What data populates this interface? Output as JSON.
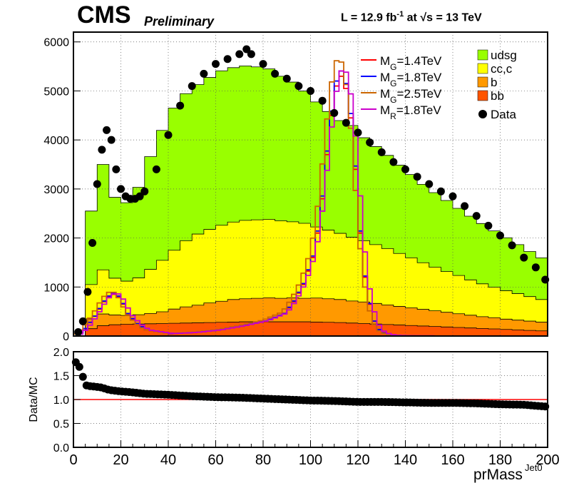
{
  "header": {
    "experiment": "CMS",
    "status": "Preliminary",
    "lumi_label": "L = 12.9 fb",
    "lumi_exponent": "-1",
    "energy_prefix": "at",
    "energy_label": "s = 13 TeV"
  },
  "chart_data": [
    {
      "type": "area",
      "stacked": true,
      "xlim": [
        0,
        200
      ],
      "ylim": [
        0,
        6200
      ],
      "yticks": [
        0,
        1000,
        2000,
        3000,
        4000,
        5000,
        6000
      ],
      "grid": true,
      "legend_position": "top-right",
      "x": [
        0,
        5,
        10,
        15,
        20,
        25,
        30,
        35,
        40,
        45,
        50,
        55,
        60,
        65,
        70,
        75,
        80,
        85,
        90,
        95,
        100,
        105,
        110,
        115,
        120,
        125,
        130,
        135,
        140,
        145,
        150,
        155,
        160,
        165,
        170,
        175,
        180,
        185,
        190,
        195,
        200
      ],
      "series": [
        {
          "name": "bb",
          "color": "#ff5500",
          "values": [
            0,
            150,
            210,
            230,
            240,
            245,
            250,
            255,
            260,
            265,
            270,
            275,
            280,
            285,
            290,
            290,
            290,
            290,
            290,
            290,
            285,
            280,
            275,
            265,
            255,
            245,
            235,
            225,
            215,
            205,
            195,
            185,
            175,
            165,
            155,
            145,
            135,
            125,
            115,
            105,
            95
          ]
        },
        {
          "name": "b",
          "color": "#ff9900",
          "values": [
            0,
            200,
            240,
            200,
            180,
            190,
            210,
            240,
            290,
            330,
            360,
            400,
            430,
            460,
            470,
            480,
            490,
            480,
            490,
            480,
            490,
            480,
            470,
            450,
            440,
            420,
            400,
            380,
            360,
            340,
            320,
            300,
            280,
            260,
            240,
            230,
            210,
            200,
            190,
            180,
            170
          ]
        },
        {
          "name": "cc,c",
          "color": "#ffff00",
          "values": [
            0,
            700,
            900,
            750,
            700,
            750,
            900,
            1050,
            1200,
            1350,
            1450,
            1500,
            1550,
            1580,
            1600,
            1600,
            1600,
            1580,
            1550,
            1530,
            1450,
            1400,
            1350,
            1300,
            1250,
            1200,
            1150,
            1080,
            1020,
            950,
            890,
            830,
            780,
            720,
            670,
            620,
            580,
            540,
            500,
            460,
            430
          ]
        },
        {
          "name": "udsg",
          "color": "#99ff00",
          "values": [
            0,
            1500,
            2150,
            1650,
            1600,
            1850,
            2300,
            2650,
            2900,
            3000,
            3050,
            3100,
            3150,
            3150,
            3150,
            3120,
            3070,
            2950,
            2850,
            2700,
            2550,
            2420,
            2300,
            2280,
            2100,
            2000,
            1900,
            1800,
            1700,
            1600,
            1520,
            1450,
            1370,
            1300,
            1230,
            1150,
            1080,
            1000,
            920,
            850,
            780
          ]
        }
      ],
      "data_points": {
        "name": "Data",
        "color": "#000000",
        "x": [
          2,
          4,
          6,
          8,
          10,
          12,
          14,
          16,
          18,
          20,
          22,
          24,
          26,
          28,
          30,
          35,
          40,
          45,
          50,
          55,
          60,
          65,
          70,
          73,
          75,
          80,
          85,
          90,
          95,
          100,
          105,
          110,
          115,
          120,
          125,
          130,
          135,
          140,
          145,
          150,
          155,
          160,
          165,
          170,
          175,
          180,
          185,
          190,
          195,
          199
        ],
        "values": [
          80,
          300,
          900,
          1900,
          3100,
          3800,
          4200,
          4000,
          3400,
          3000,
          2850,
          2800,
          2800,
          2850,
          2950,
          3400,
          4100,
          4700,
          5100,
          5350,
          5550,
          5650,
          5750,
          5850,
          5750,
          5550,
          5350,
          5250,
          5100,
          5000,
          4800,
          4550,
          4350,
          4150,
          3950,
          3750,
          3550,
          3400,
          3250,
          3100,
          2950,
          2850,
          2650,
          2450,
          2250,
          2050,
          1850,
          1600,
          1400,
          1150
        ]
      },
      "signals": [
        {
          "name": "M_G=1.4TeV",
          "color": "#ff0000"
        },
        {
          "name": "M_G=1.8TeV",
          "color": "#0000ff"
        },
        {
          "name": "M_G=2.5TeV",
          "color": "#cc6600"
        },
        {
          "name": "M_R=1.8TeV",
          "color": "#cc00cc"
        }
      ],
      "signal_shape": {
        "x": [
          0,
          4,
          8,
          12,
          14,
          16,
          18,
          20,
          22,
          26,
          30,
          40,
          50,
          60,
          70,
          80,
          88,
          92,
          96,
          100,
          102,
          104,
          106,
          108,
          110,
          112,
          114,
          116,
          118,
          120,
          122,
          124,
          126,
          128,
          130,
          134,
          140,
          160,
          180,
          200
        ],
        "values": [
          0,
          150,
          400,
          700,
          800,
          850,
          800,
          650,
          450,
          250,
          120,
          50,
          70,
          120,
          200,
          300,
          450,
          700,
          1050,
          1600,
          2100,
          2800,
          3700,
          4500,
          5100,
          5300,
          5050,
          4450,
          3400,
          2100,
          1200,
          650,
          300,
          130,
          60,
          15,
          5,
          0,
          0,
          0
        ]
      },
      "signal_variations": [
        {
          "scale": 1.0,
          "shift": 0
        },
        {
          "scale": 1.02,
          "shift": 0
        },
        {
          "scale": 1.08,
          "shift": -1
        },
        {
          "scale": 1.04,
          "shift": 1
        }
      ]
    },
    {
      "type": "scatter",
      "xlim": [
        0,
        200
      ],
      "ylim": [
        0,
        2
      ],
      "yticks": [
        0.0,
        0.5,
        1.0,
        1.5,
        2.0
      ],
      "ytick_labels": [
        "0.0",
        "0.5",
        "1.0",
        "1.5",
        "2.0"
      ],
      "ylabel": "Data/MC",
      "xticks": [
        0,
        20,
        40,
        60,
        80,
        100,
        120,
        140,
        160,
        180,
        200
      ],
      "xlabel": "prMass",
      "xlabel_sub": "Jet0",
      "reference_line": 1.0,
      "grid": true,
      "x": [
        1,
        3,
        5,
        7,
        9,
        12,
        15,
        20,
        25,
        30,
        40,
        50,
        60,
        70,
        80,
        90,
        100,
        110,
        120,
        130,
        140,
        150,
        160,
        170,
        180,
        190,
        200
      ],
      "values": [
        1.78,
        1.65,
        1.3,
        1.28,
        1.27,
        1.25,
        1.2,
        1.17,
        1.15,
        1.12,
        1.1,
        1.07,
        1.05,
        1.04,
        1.02,
        1.0,
        0.98,
        0.97,
        0.95,
        0.95,
        0.94,
        0.93,
        0.93,
        0.92,
        0.9,
        0.89,
        0.85
      ]
    }
  ]
}
